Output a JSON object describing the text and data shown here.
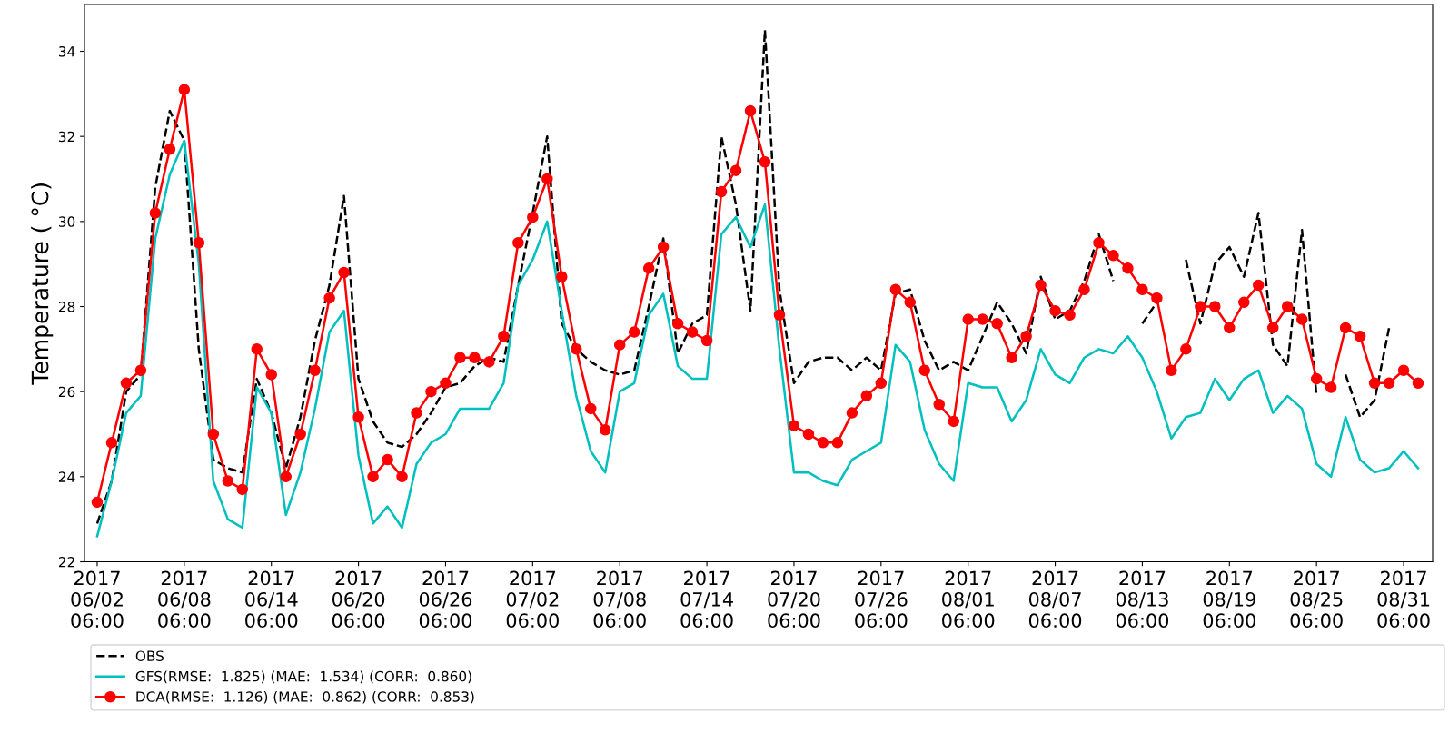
{
  "chart_data": {
    "type": "line",
    "ylabel": "Temperature ( °C)",
    "x": [
      "2017-06-02T06:00",
      "2017-06-03T06:00",
      "2017-06-04T06:00",
      "2017-06-05T06:00",
      "2017-06-06T06:00",
      "2017-06-07T06:00",
      "2017-06-08T06:00",
      "2017-06-09T06:00",
      "2017-06-10T06:00",
      "2017-06-11T06:00",
      "2017-06-12T06:00",
      "2017-06-13T06:00",
      "2017-06-14T06:00",
      "2017-06-15T06:00",
      "2017-06-16T06:00",
      "2017-06-17T06:00",
      "2017-06-18T06:00",
      "2017-06-19T06:00",
      "2017-06-20T06:00",
      "2017-06-21T06:00",
      "2017-06-22T06:00",
      "2017-06-23T06:00",
      "2017-06-24T06:00",
      "2017-06-25T06:00",
      "2017-06-26T06:00",
      "2017-06-27T06:00",
      "2017-06-28T06:00",
      "2017-06-29T06:00",
      "2017-06-30T06:00",
      "2017-07-01T06:00",
      "2017-07-02T06:00",
      "2017-07-03T06:00",
      "2017-07-04T06:00",
      "2017-07-05T06:00",
      "2017-07-06T06:00",
      "2017-07-07T06:00",
      "2017-07-08T06:00",
      "2017-07-09T06:00",
      "2017-07-10T06:00",
      "2017-07-11T06:00",
      "2017-07-12T06:00",
      "2017-07-13T06:00",
      "2017-07-14T06:00",
      "2017-07-15T06:00",
      "2017-07-16T06:00",
      "2017-07-17T06:00",
      "2017-07-18T06:00",
      "2017-07-19T06:00",
      "2017-07-20T06:00",
      "2017-07-21T06:00",
      "2017-07-22T06:00",
      "2017-07-23T06:00",
      "2017-07-24T06:00",
      "2017-07-25T06:00",
      "2017-07-26T06:00",
      "2017-07-27T06:00",
      "2017-07-28T06:00",
      "2017-07-29T06:00",
      "2017-07-30T06:00",
      "2017-07-31T06:00",
      "2017-08-01T06:00",
      "2017-08-02T06:00",
      "2017-08-03T06:00",
      "2017-08-04T06:00",
      "2017-08-05T06:00",
      "2017-08-06T06:00",
      "2017-08-07T06:00",
      "2017-08-08T06:00",
      "2017-08-09T06:00",
      "2017-08-10T06:00",
      "2017-08-11T06:00",
      "2017-08-12T06:00",
      "2017-08-13T06:00",
      "2017-08-14T06:00",
      "2017-08-15T06:00",
      "2017-08-16T06:00",
      "2017-08-17T06:00",
      "2017-08-18T06:00",
      "2017-08-19T06:00",
      "2017-08-20T06:00",
      "2017-08-21T06:00",
      "2017-08-22T06:00",
      "2017-08-23T06:00",
      "2017-08-24T06:00",
      "2017-08-25T06:00",
      "2017-08-26T06:00",
      "2017-08-27T06:00",
      "2017-08-28T06:00",
      "2017-08-29T06:00",
      "2017-08-30T06:00",
      "2017-08-31T06:00",
      "2017-09-01T06:00"
    ],
    "series": [
      {
        "name": "OBS",
        "color": "#000000",
        "line_style": "dashed",
        "marker": "none",
        "values": [
          22.9,
          23.9,
          26.0,
          26.4,
          30.8,
          32.6,
          31.9,
          27.0,
          24.4,
          24.2,
          24.1,
          26.3,
          25.5,
          24.2,
          25.4,
          27.2,
          28.5,
          30.6,
          26.3,
          25.3,
          24.8,
          24.7,
          25.0,
          25.5,
          26.1,
          26.2,
          26.6,
          26.8,
          26.7,
          28.5,
          30.2,
          32.0,
          27.6,
          27.0,
          26.7,
          26.5,
          26.4,
          26.5,
          28.0,
          29.6,
          26.9,
          27.6,
          27.8,
          32.0,
          30.4,
          27.9,
          34.5,
          28.4,
          26.2,
          26.7,
          26.8,
          26.8,
          26.5,
          26.8,
          26.5,
          28.3,
          28.4,
          27.2,
          26.5,
          26.7,
          26.5,
          27.3,
          28.1,
          27.6,
          26.9,
          28.7,
          27.7,
          27.9,
          28.6,
          29.7,
          28.6,
          null,
          27.6,
          28.1,
          null,
          29.1,
          27.6,
          29.0,
          29.4,
          28.7,
          30.2,
          27.1,
          26.6,
          29.8,
          25.9,
          null,
          26.4,
          25.4,
          25.8,
          27.5,
          null,
          null
        ]
      },
      {
        "name": "GFS(RMSE:  1.825) (MAE:  1.534) (CORR:  0.860)",
        "color": "#00bfbf",
        "line_style": "solid",
        "marker": "none",
        "values": [
          22.6,
          23.9,
          25.5,
          25.9,
          29.6,
          31.1,
          31.9,
          29.0,
          23.9,
          23.0,
          22.8,
          26.1,
          25.5,
          23.1,
          24.1,
          25.6,
          27.4,
          27.9,
          24.5,
          22.9,
          23.3,
          22.8,
          24.3,
          24.8,
          25.0,
          25.6,
          25.6,
          25.6,
          26.2,
          28.5,
          29.1,
          30.0,
          27.9,
          25.9,
          24.6,
          24.1,
          26.0,
          26.2,
          27.8,
          28.3,
          26.6,
          26.3,
          26.3,
          29.7,
          30.1,
          29.4,
          30.4,
          27.0,
          24.1,
          24.1,
          23.9,
          23.8,
          24.4,
          24.6,
          24.8,
          27.1,
          26.7,
          25.1,
          24.3,
          23.9,
          26.2,
          26.1,
          26.1,
          25.3,
          25.8,
          27.0,
          26.4,
          26.2,
          26.8,
          27.0,
          26.9,
          27.3,
          26.8,
          26.0,
          24.9,
          25.4,
          25.5,
          26.3,
          25.8,
          26.3,
          26.5,
          25.5,
          25.9,
          25.6,
          24.3,
          24.0,
          25.4,
          24.4,
          24.1,
          24.2,
          24.6,
          24.2
        ]
      },
      {
        "name": "DCA(RMSE:  1.126) (MAE:  0.862) (CORR:  0.853)",
        "color": "#ff0000",
        "line_style": "solid",
        "marker": "circle",
        "values": [
          23.4,
          24.8,
          26.2,
          26.5,
          30.2,
          31.7,
          33.1,
          29.5,
          25.0,
          23.9,
          23.7,
          27.0,
          26.4,
          24.0,
          25.0,
          26.5,
          28.2,
          28.8,
          25.4,
          24.0,
          24.4,
          24.0,
          25.5,
          26.0,
          26.2,
          26.8,
          26.8,
          26.7,
          27.3,
          29.5,
          30.1,
          31.0,
          28.7,
          27.0,
          25.6,
          25.1,
          27.1,
          27.4,
          28.9,
          29.4,
          27.6,
          27.4,
          27.2,
          30.7,
          31.2,
          32.6,
          31.4,
          27.8,
          25.2,
          25.0,
          24.8,
          24.8,
          25.5,
          25.9,
          26.2,
          28.4,
          28.1,
          26.5,
          25.7,
          25.3,
          27.7,
          27.7,
          27.6,
          26.8,
          27.3,
          28.5,
          27.9,
          27.8,
          28.4,
          29.5,
          29.2,
          28.9,
          28.4,
          28.2,
          26.5,
          27.0,
          28.0,
          28.0,
          27.5,
          28.1,
          28.5,
          27.5,
          28.0,
          27.7,
          26.3,
          26.1,
          27.5,
          27.3,
          26.2,
          26.2,
          26.5,
          26.2
        ]
      }
    ],
    "xlim": [
      "2017-06-01T09:00",
      "2017-09-02T06:00"
    ],
    "xticks": [
      {
        "value": "2017-06-02T06:00",
        "label": "2017\n06/02\n06:00"
      },
      {
        "value": "2017-06-08T06:00",
        "label": "2017\n06/08\n06:00"
      },
      {
        "value": "2017-06-14T06:00",
        "label": "2017\n06/14\n06:00"
      },
      {
        "value": "2017-06-20T06:00",
        "label": "2017\n06/20\n06:00"
      },
      {
        "value": "2017-06-26T06:00",
        "label": "2017\n06/26\n06:00"
      },
      {
        "value": "2017-07-02T06:00",
        "label": "2017\n07/02\n06:00"
      },
      {
        "value": "2017-07-08T06:00",
        "label": "2017\n07/08\n06:00"
      },
      {
        "value": "2017-07-14T06:00",
        "label": "2017\n07/14\n06:00"
      },
      {
        "value": "2017-07-20T06:00",
        "label": "2017\n07/20\n06:00"
      },
      {
        "value": "2017-07-26T06:00",
        "label": "2017\n07/26\n06:00"
      },
      {
        "value": "2017-08-01T06:00",
        "label": "2017\n08/01\n06:00"
      },
      {
        "value": "2017-08-07T06:00",
        "label": "2017\n08/07\n06:00"
      },
      {
        "value": "2017-08-13T06:00",
        "label": "2017\n08/13\n06:00"
      },
      {
        "value": "2017-08-19T06:00",
        "label": "2017\n08/19\n06:00"
      },
      {
        "value": "2017-08-25T06:00",
        "label": "2017\n08/25\n06:00"
      },
      {
        "value": "2017-08-31T06:00",
        "label": "2017\n08/31\n06:00"
      }
    ],
    "ylim": [
      22,
      35.1
    ],
    "yticks": [
      22,
      24,
      26,
      28,
      30,
      32,
      34
    ],
    "grid": false,
    "legend": "bottom"
  }
}
